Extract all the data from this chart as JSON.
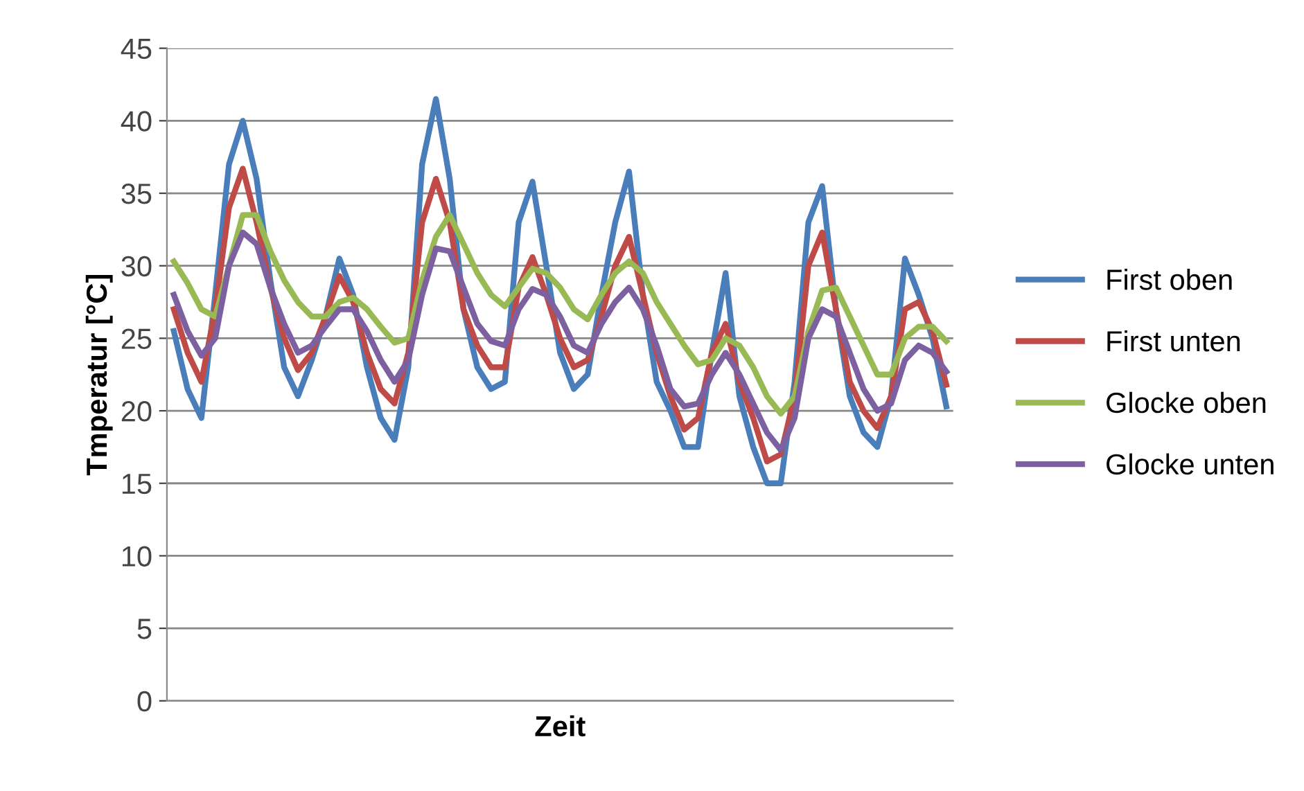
{
  "chart_data": {
    "type": "line",
    "xlabel": "Zeit",
    "ylabel": "Tmperatur [°C]",
    "categories": [
      null,
      null,
      null,
      null,
      null,
      null,
      null,
      null,
      null,
      null,
      null,
      null,
      null,
      null,
      null,
      null,
      null,
      null,
      null,
      null,
      null,
      null,
      null,
      null,
      null,
      null,
      null,
      null,
      null,
      null,
      null,
      null,
      null,
      null,
      null,
      null,
      null,
      null,
      null,
      null,
      null,
      null,
      null,
      null,
      null,
      null,
      null,
      null,
      null,
      null,
      null,
      null,
      null,
      null,
      null,
      null,
      null
    ],
    "series": [
      {
        "name": "First oben",
        "color": "#4a7ebb",
        "values": [
          25.5,
          21.5,
          19.5,
          28,
          37,
          40,
          36,
          29,
          23,
          21,
          23.5,
          26.5,
          30.5,
          28,
          23,
          19.5,
          18,
          23,
          37,
          41.5,
          36,
          27,
          23,
          21.5,
          22,
          33,
          35.8,
          30,
          24,
          21.5,
          22.5,
          28,
          33,
          36.5,
          28,
          22,
          20,
          17.5,
          17.5,
          24,
          29.5,
          21,
          17.5,
          15,
          15,
          22,
          33,
          35.5,
          27,
          21,
          18.5,
          17.5,
          21,
          30.5,
          28,
          25,
          20.3
        ]
      },
      {
        "name": "First unten",
        "color": "#be4b48",
        "values": [
          27,
          24,
          22,
          27,
          34,
          36.7,
          33,
          28.5,
          25,
          22.8,
          24,
          26.5,
          29.3,
          27.5,
          24,
          21.5,
          20.5,
          24,
          33,
          36,
          33,
          27,
          24.5,
          23,
          23,
          28.5,
          30.6,
          28,
          25,
          23,
          23.5,
          26.5,
          30,
          32,
          28,
          24,
          21,
          18.7,
          19.5,
          24,
          26,
          22,
          19.5,
          16.5,
          17,
          21,
          30,
          32.3,
          27,
          22,
          20,
          18.8,
          21,
          27,
          27.5,
          25.5,
          21.8
        ]
      },
      {
        "name": "Glocke oben",
        "color": "#98b954",
        "values": [
          30.3,
          28.8,
          27,
          26.5,
          30,
          33.5,
          33.5,
          31,
          29,
          27.5,
          26.5,
          26.5,
          27.5,
          27.8,
          27,
          25.8,
          24.7,
          25,
          29,
          32,
          33.5,
          31.5,
          29.5,
          28,
          27.2,
          28.5,
          29.8,
          29.5,
          28.5,
          27,
          26.3,
          28,
          29.5,
          30.3,
          29.5,
          27.5,
          26,
          24.5,
          23.2,
          23.5,
          25,
          24.5,
          23,
          21,
          19.8,
          21,
          25.5,
          28.3,
          28.5,
          26.5,
          24.5,
          22.5,
          22.5,
          25,
          25.8,
          25.8,
          24.8
        ]
      },
      {
        "name": "Glocke unten",
        "color": "#7d60a0",
        "values": [
          28,
          25.5,
          23.8,
          25,
          30,
          32.3,
          31.5,
          28.5,
          26,
          24,
          24.5,
          25.8,
          27,
          27,
          25.5,
          23.5,
          22,
          23.5,
          28,
          31.2,
          31,
          28.5,
          26,
          24.8,
          24.5,
          27,
          28.4,
          28,
          26.5,
          24.5,
          24,
          26,
          27.5,
          28.5,
          27,
          24.5,
          21.5,
          20.3,
          20.5,
          22.5,
          24,
          22.5,
          20.5,
          18.5,
          17.3,
          19.5,
          25,
          27,
          26.5,
          24,
          21.5,
          20,
          20.5,
          23.5,
          24.5,
          24,
          22.7
        ]
      }
    ],
    "ylim": [
      0,
      45
    ],
    "yticks": [
      0,
      5,
      10,
      15,
      20,
      25,
      30,
      35,
      40,
      45
    ],
    "grid": "y",
    "legend": "right",
    "marker": "none",
    "line_style": "solid"
  }
}
